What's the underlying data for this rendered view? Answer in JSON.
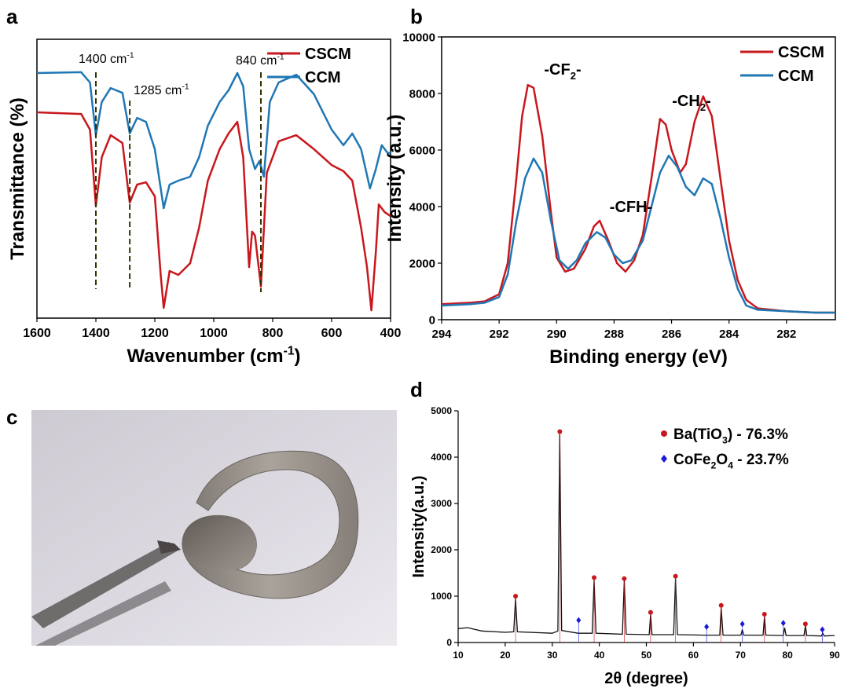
{
  "chart_data": [
    {
      "type": "line",
      "panel_label": "a",
      "ylabel": "Transmittance (%)",
      "xlabel_parts": [
        "Wavenumber (cm",
        "-1",
        ")"
      ],
      "xlim": [
        1600,
        400
      ],
      "xticks": [
        1600,
        1400,
        1200,
        1000,
        800,
        600,
        400
      ],
      "ylim": [
        0,
        100
      ],
      "series": [
        {
          "name": "CSCM",
          "color": "#c8171d",
          "x": [
            1600,
            1450,
            1420,
            1400,
            1380,
            1350,
            1310,
            1285,
            1260,
            1230,
            1200,
            1180,
            1170,
            1150,
            1120,
            1080,
            1050,
            1020,
            980,
            950,
            920,
            900,
            880,
            870,
            860,
            840,
            820,
            780,
            720,
            660,
            600,
            560,
            530,
            500,
            480,
            465,
            450,
            440,
            420,
            400
          ],
          "values": [
            73.8,
            73.2,
            67.6,
            40.3,
            57.7,
            65.6,
            62.8,
            41.4,
            47.9,
            48.7,
            43.7,
            15.5,
            3.7,
            16.9,
            15.5,
            19.7,
            32.4,
            49.3,
            60.6,
            66.2,
            70.4,
            57.7,
            18.3,
            31.0,
            29.6,
            11.3,
            52.1,
            63.4,
            65.6,
            60.6,
            54.9,
            52.7,
            49.3,
            32.4,
            18.3,
            2.8,
            23.9,
            40.8,
            38.0,
            36.6
          ]
        },
        {
          "name": "CCM",
          "color": "#1f77b4",
          "x": [
            1600,
            1450,
            1420,
            1400,
            1380,
            1350,
            1310,
            1285,
            1260,
            1230,
            1200,
            1170,
            1150,
            1120,
            1080,
            1050,
            1020,
            980,
            950,
            920,
            900,
            880,
            860,
            845,
            830,
            810,
            780,
            720,
            660,
            600,
            560,
            530,
            500,
            470,
            450,
            430,
            410,
            400
          ],
          "values": [
            87.9,
            88.2,
            84.5,
            65.6,
            77.5,
            82.5,
            80.8,
            66.2,
            71.8,
            70.4,
            60.6,
            39.4,
            47.9,
            49.3,
            50.7,
            57.7,
            69.0,
            77.5,
            81.7,
            87.9,
            83.1,
            60.6,
            53.5,
            56.3,
            50.7,
            77.5,
            84.5,
            87.3,
            80.3,
            67.6,
            62.0,
            66.2,
            60.6,
            46.5,
            53.5,
            62.0,
            59.2,
            59.2
          ]
        }
      ],
      "annotations": [
        {
          "parts": [
            "1400 cm",
            "-1"
          ],
          "x": 1400
        },
        {
          "parts": [
            "1285 cm",
            "-1"
          ],
          "x": 1285
        },
        {
          "parts": [
            "840 cm",
            "-1"
          ],
          "x": 840
        }
      ]
    },
    {
      "type": "line",
      "panel_label": "b",
      "ylabel": "Intensity (a.u.)",
      "xlabel_parts": [
        "Binding energy (eV)"
      ],
      "xlim": [
        294,
        280.3
      ],
      "xticks": [
        294,
        292,
        290,
        288,
        286,
        284,
        282
      ],
      "ylim": [
        0,
        10000
      ],
      "yticks": [
        0,
        2000,
        4000,
        6000,
        8000,
        10000
      ],
      "series": [
        {
          "name": "CSCM",
          "color": "#c8171d",
          "x": [
            294,
            293,
            292.5,
            292,
            291.7,
            291.4,
            291.2,
            291,
            290.8,
            290.5,
            290.2,
            290,
            289.7,
            289.4,
            289,
            288.7,
            288.5,
            288.2,
            287.9,
            287.6,
            287.3,
            287,
            286.7,
            286.4,
            286.2,
            286,
            285.7,
            285.5,
            285.2,
            284.9,
            284.6,
            284.3,
            284,
            283.7,
            283.4,
            283,
            282,
            281,
            280.3
          ],
          "values": [
            550,
            600,
            650,
            900,
            2000,
            5000,
            7200,
            8300,
            8200,
            6500,
            3800,
            2200,
            1700,
            1800,
            2500,
            3300,
            3500,
            2800,
            2000,
            1700,
            2100,
            3000,
            5000,
            7100,
            6900,
            6000,
            5200,
            5500,
            7000,
            7900,
            7200,
            5000,
            2800,
            1400,
            700,
            400,
            300,
            250,
            250
          ]
        },
        {
          "name": "CCM",
          "color": "#1f77b4",
          "x": [
            294,
            293,
            292.5,
            292,
            291.7,
            291.4,
            291.1,
            290.8,
            290.5,
            290.2,
            289.9,
            289.6,
            289.3,
            289,
            288.6,
            288.3,
            288,
            287.7,
            287.4,
            287,
            286.7,
            286.4,
            286.1,
            285.8,
            285.5,
            285.2,
            284.9,
            284.6,
            284.3,
            284,
            283.7,
            283.4,
            283,
            282,
            281,
            280.3
          ],
          "values": [
            500,
            550,
            600,
            800,
            1600,
            3500,
            5000,
            5700,
            5200,
            3500,
            2100,
            1800,
            2100,
            2700,
            3100,
            2900,
            2300,
            2000,
            2100,
            2800,
            4000,
            5200,
            5800,
            5400,
            4700,
            4400,
            5000,
            4800,
            3600,
            2200,
            1100,
            500,
            350,
            300,
            250,
            250
          ]
        }
      ],
      "annotations": [
        {
          "parts": [
            "-CF",
            "2",
            "-"
          ]
        },
        {
          "parts": [
            "-CFH-"
          ]
        },
        {
          "parts": [
            "-CH",
            "2",
            "-"
          ]
        }
      ]
    },
    {
      "type": "line",
      "panel_label": "d",
      "ylabel": "Intensity(a.u.)",
      "xlabel_parts": [
        "2θ (degree)"
      ],
      "xlim": [
        10,
        90
      ],
      "xticks": [
        10,
        20,
        30,
        40,
        50,
        60,
        70,
        80,
        90
      ],
      "ylim": [
        0,
        5000
      ],
      "yticks": [
        0,
        1000,
        2000,
        3000,
        4000,
        5000
      ],
      "color": "#111111",
      "x": [
        10,
        12,
        15,
        20,
        21.8,
        22.2,
        22.6,
        30,
        31.2,
        31.6,
        32,
        35.5,
        38.5,
        38.9,
        39.3,
        44.9,
        45.3,
        45.7,
        50.6,
        50.9,
        51.2,
        55.8,
        56.2,
        56.6,
        62,
        65.6,
        65.9,
        66.3,
        70.1,
        70.4,
        70.7,
        74.8,
        75.1,
        75.4,
        79.1,
        79.4,
        79.7,
        83.5,
        83.8,
        84.1,
        87.2,
        87.5,
        87.8,
        90
      ],
      "values": [
        300,
        320,
        250,
        220,
        230,
        950,
        230,
        200,
        250,
        4500,
        260,
        200,
        200,
        1350,
        200,
        180,
        1330,
        180,
        170,
        600,
        170,
        170,
        1380,
        170,
        160,
        160,
        750,
        160,
        160,
        280,
        160,
        160,
        560,
        160,
        150,
        320,
        150,
        150,
        370,
        150,
        140,
        200,
        140,
        150
      ],
      "markers": [
        {
          "name_parts": [
            "Ba(TiO",
            "3",
            ") - 76.3%"
          ],
          "color": "#c8171d",
          "shape": "circle",
          "x": [
            22.2,
            31.6,
            38.9,
            45.3,
            50.9,
            56.2,
            65.9,
            75.1,
            83.8
          ],
          "values": [
            1000,
            4550,
            1400,
            1380,
            650,
            1430,
            800,
            610,
            400
          ]
        },
        {
          "name_parts": [
            "CoFe",
            "2",
            "O",
            "4",
            " - 23.7%"
          ],
          "color": "#1a1adb",
          "shape": "diamond",
          "x": [
            35.6,
            62.8,
            70.4,
            79.1,
            87.4
          ],
          "values": [
            480,
            340,
            400,
            420,
            280
          ]
        }
      ]
    }
  ],
  "photo_panel": {
    "label": "c"
  }
}
